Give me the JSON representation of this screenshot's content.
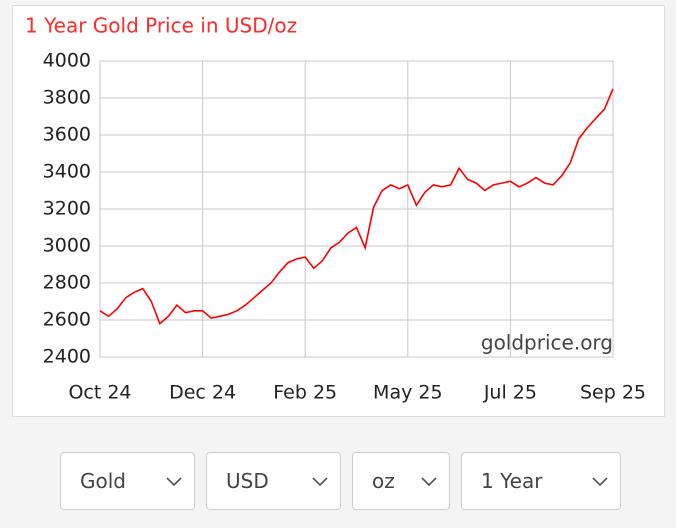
{
  "chart_data": {
    "type": "line",
    "title": "1 Year Gold Price in USD/oz",
    "watermark": "goldprice.org",
    "color": "#ff0000",
    "grid": true,
    "categories": [
      "Oct 24",
      null,
      null,
      null,
      null,
      null,
      null,
      null,
      null,
      null,
      null,
      null,
      "Dec 24",
      null,
      null,
      null,
      null,
      null,
      null,
      null,
      null,
      null,
      null,
      null,
      "Feb 25",
      null,
      null,
      null,
      null,
      null,
      null,
      null,
      null,
      null,
      null,
      null,
      "May 25",
      null,
      null,
      null,
      null,
      null,
      null,
      null,
      null,
      null,
      null,
      null,
      "Jul 25",
      null,
      null,
      null,
      null,
      null,
      null,
      null,
      null,
      null,
      null,
      null,
      "Sep 25"
    ],
    "values": [
      2650,
      2620,
      2660,
      2720,
      2750,
      2770,
      2700,
      2580,
      2620,
      2680,
      2640,
      2650,
      2650,
      2610,
      2620,
      2630,
      2650,
      2680,
      2720,
      2760,
      2800,
      2860,
      2910,
      2930,
      2940,
      2880,
      2920,
      2990,
      3020,
      3070,
      3100,
      2990,
      3210,
      3300,
      3330,
      3310,
      3330,
      3220,
      3290,
      3330,
      3320,
      3330,
      3420,
      3360,
      3340,
      3300,
      3330,
      3340,
      3350,
      3320,
      3340,
      3370,
      3340,
      3330,
      3380,
      3450,
      3580,
      3640,
      3690,
      3740,
      3850
    ],
    "ylim": [
      2400,
      4000
    ],
    "yticks": [
      2400,
      2600,
      2800,
      3000,
      3200,
      3400,
      3600,
      3800,
      4000
    ]
  },
  "controls": {
    "metal": "Gold",
    "currency": "USD",
    "unit": "oz",
    "period": "1 Year"
  }
}
